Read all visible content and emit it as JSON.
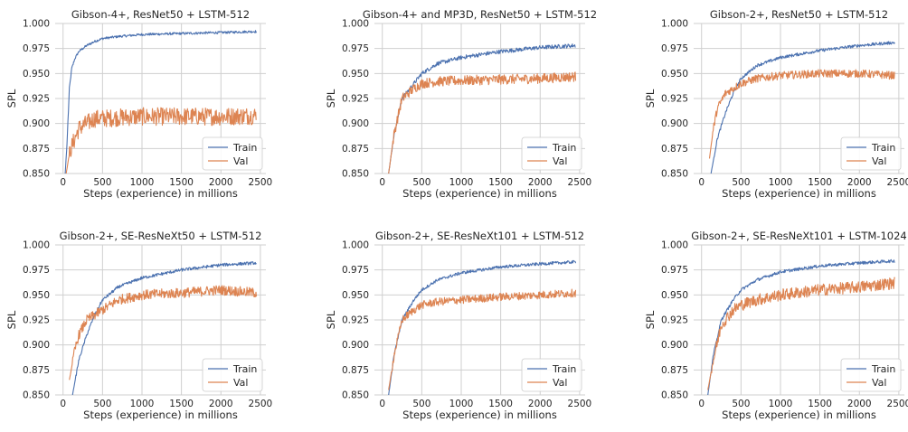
{
  "colors": {
    "train": "#4c72b0",
    "val": "#dd8452",
    "grid": "#cfcfcf",
    "background": "#ffffff"
  },
  "chart_data": [
    {
      "type": "line",
      "title": "Gibson-4+, ResNet50 + LSTM-512",
      "xlabel": "Steps (experience) in millions",
      "ylabel": "SPL",
      "xlim": [
        -100,
        2570
      ],
      "ylim": [
        0.85,
        1.0
      ],
      "xticks": [
        "0",
        "500",
        "1000",
        "1500",
        "2000",
        "2500"
      ],
      "yticks": [
        "0.850",
        "0.875",
        "0.900",
        "0.925",
        "0.950",
        "0.975",
        "1.000"
      ],
      "grid": true,
      "legend_position": "bottom-right",
      "series": [
        {
          "name": "Train",
          "color": "#4c72b0",
          "x": [
            20,
            50,
            80,
            110,
            150,
            200,
            300,
            400,
            500,
            700,
            1000,
            1500,
            2000,
            2450
          ],
          "y": [
            0.84,
            0.88,
            0.935,
            0.955,
            0.965,
            0.972,
            0.978,
            0.982,
            0.985,
            0.987,
            0.989,
            0.99,
            0.991,
            0.992
          ]
        },
        {
          "name": "Val",
          "color": "#dd8452",
          "x": [
            40,
            70,
            100,
            150,
            200,
            300,
            400,
            500,
            700,
            1000,
            1500,
            2000,
            2450
          ],
          "y": [
            0.85,
            0.865,
            0.875,
            0.885,
            0.895,
            0.9,
            0.905,
            0.905,
            0.906,
            0.907,
            0.907,
            0.907,
            0.908
          ],
          "noise": 0.009
        }
      ]
    },
    {
      "type": "line",
      "title": "Gibson-4+ and MP3D, ResNet50 + LSTM-512",
      "xlabel": "Steps (experience) in millions",
      "ylabel": "SPL",
      "xlim": [
        -100,
        2570
      ],
      "ylim": [
        0.85,
        1.0
      ],
      "xticks": [
        "0",
        "500",
        "1000",
        "1500",
        "2000",
        "2500"
      ],
      "yticks": [
        "0.850",
        "0.875",
        "0.900",
        "0.925",
        "0.950",
        "0.975",
        "1.000"
      ],
      "grid": true,
      "legend_position": "bottom-right",
      "series": [
        {
          "name": "Train",
          "color": "#4c72b0",
          "x": [
            80,
            150,
            250,
            400,
            500,
            700,
            1000,
            1500,
            2000,
            2450
          ],
          "y": [
            0.85,
            0.89,
            0.925,
            0.94,
            0.95,
            0.96,
            0.966,
            0.972,
            0.976,
            0.978
          ],
          "noise": 0.002
        },
        {
          "name": "Val",
          "color": "#dd8452",
          "x": [
            80,
            150,
            250,
            400,
            500,
            700,
            1000,
            1500,
            2000,
            2450
          ],
          "y": [
            0.85,
            0.89,
            0.925,
            0.935,
            0.94,
            0.942,
            0.943,
            0.944,
            0.945,
            0.947
          ],
          "noise": 0.005
        }
      ]
    },
    {
      "type": "line",
      "title": "Gibson-2+, ResNet50 + LSTM-512",
      "xlabel": "Steps (experience) in millions",
      "ylabel": "SPL",
      "xlim": [
        -100,
        2570
      ],
      "ylim": [
        0.85,
        1.0
      ],
      "xticks": [
        "0",
        "500",
        "1000",
        "1500",
        "2000",
        "2500"
      ],
      "yticks": [
        "0.850",
        "0.875",
        "0.900",
        "0.925",
        "0.950",
        "0.975",
        "1.000"
      ],
      "grid": true,
      "legend_position": "bottom-right",
      "series": [
        {
          "name": "Train",
          "color": "#4c72b0",
          "x": [
            120,
            200,
            300,
            400,
            500,
            700,
            1000,
            1500,
            2000,
            2450
          ],
          "y": [
            0.85,
            0.885,
            0.91,
            0.93,
            0.945,
            0.958,
            0.966,
            0.973,
            0.978,
            0.981
          ],
          "noise": 0.0015
        },
        {
          "name": "Val",
          "color": "#dd8452",
          "x": [
            100,
            150,
            200,
            300,
            400,
            500,
            700,
            1000,
            1500,
            2000,
            2450
          ],
          "y": [
            0.865,
            0.895,
            0.915,
            0.93,
            0.935,
            0.94,
            0.945,
            0.948,
            0.95,
            0.95,
            0.948
          ],
          "noise": 0.004
        }
      ]
    },
    {
      "type": "line",
      "title": "Gibson-2+, SE-ResNeXt50 + LSTM-512",
      "xlabel": "Steps (experience) in millions",
      "ylabel": "SPL",
      "xlim": [
        -100,
        2570
      ],
      "ylim": [
        0.85,
        1.0
      ],
      "xticks": [
        "0",
        "500",
        "1000",
        "1500",
        "2000",
        "2500"
      ],
      "yticks": [
        "0.850",
        "0.875",
        "0.900",
        "0.925",
        "0.950",
        "0.975",
        "1.000"
      ],
      "grid": true,
      "legend_position": "bottom-right",
      "series": [
        {
          "name": "Train",
          "color": "#4c72b0",
          "x": [
            120,
            200,
            300,
            400,
            500,
            700,
            1000,
            1500,
            2000,
            2450
          ],
          "y": [
            0.85,
            0.885,
            0.91,
            0.93,
            0.945,
            0.958,
            0.967,
            0.975,
            0.98,
            0.982
          ],
          "noise": 0.0015
        },
        {
          "name": "Val",
          "color": "#dd8452",
          "x": [
            80,
            150,
            200,
            300,
            400,
            500,
            700,
            1000,
            1500,
            2000,
            2450
          ],
          "y": [
            0.865,
            0.895,
            0.91,
            0.925,
            0.93,
            0.935,
            0.945,
            0.95,
            0.952,
            0.955,
            0.952
          ],
          "noise": 0.005
        }
      ]
    },
    {
      "type": "line",
      "title": "Gibson-2+, SE-ResNeXt101 + LSTM-512",
      "xlabel": "Steps (experience) in millions",
      "ylabel": "SPL",
      "xlim": [
        -100,
        2570
      ],
      "ylim": [
        0.85,
        1.0
      ],
      "xticks": [
        "0",
        "500",
        "1000",
        "1500",
        "2000",
        "2500"
      ],
      "yticks": [
        "0.850",
        "0.875",
        "0.900",
        "0.925",
        "0.950",
        "0.975",
        "1.000"
      ],
      "grid": true,
      "legend_position": "bottom-right",
      "series": [
        {
          "name": "Train",
          "color": "#4c72b0",
          "x": [
            80,
            150,
            250,
            400,
            500,
            700,
            1000,
            1500,
            2000,
            2450
          ],
          "y": [
            0.85,
            0.89,
            0.925,
            0.945,
            0.955,
            0.965,
            0.972,
            0.978,
            0.981,
            0.983
          ],
          "noise": 0.0015
        },
        {
          "name": "Val",
          "color": "#dd8452",
          "x": [
            80,
            150,
            250,
            400,
            500,
            700,
            1000,
            1500,
            2000,
            2450
          ],
          "y": [
            0.855,
            0.89,
            0.925,
            0.935,
            0.94,
            0.943,
            0.945,
            0.948,
            0.95,
            0.952
          ],
          "noise": 0.004
        }
      ]
    },
    {
      "type": "line",
      "title": "Gibson-2+, SE-ResNeXt101 + LSTM-1024",
      "xlabel": "Steps (experience) in millions",
      "ylabel": "SPL",
      "xlim": [
        -100,
        2570
      ],
      "ylim": [
        0.85,
        1.0
      ],
      "xticks": [
        "0",
        "500",
        "1000",
        "1500",
        "2000",
        "2500"
      ],
      "yticks": [
        "0.850",
        "0.875",
        "0.900",
        "0.925",
        "0.950",
        "0.975",
        "1.000"
      ],
      "grid": true,
      "legend_position": "bottom-right",
      "series": [
        {
          "name": "Train",
          "color": "#4c72b0",
          "x": [
            80,
            150,
            250,
            400,
            500,
            700,
            1000,
            1500,
            2000,
            2450
          ],
          "y": [
            0.85,
            0.89,
            0.925,
            0.945,
            0.955,
            0.965,
            0.973,
            0.979,
            0.982,
            0.984
          ],
          "noise": 0.0015
        },
        {
          "name": "Val",
          "color": "#dd8452",
          "x": [
            80,
            150,
            250,
            400,
            500,
            700,
            1000,
            1500,
            2000,
            2450
          ],
          "y": [
            0.855,
            0.885,
            0.92,
            0.935,
            0.94,
            0.945,
            0.95,
            0.955,
            0.958,
            0.962
          ],
          "noise": 0.006
        }
      ]
    }
  ]
}
